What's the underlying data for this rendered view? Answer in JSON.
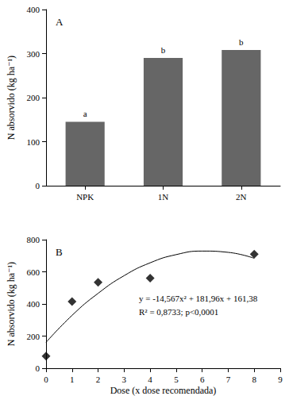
{
  "chart_data": [
    {
      "type": "bar",
      "title": "A",
      "categories": [
        "NPK",
        "1N",
        "2N"
      ],
      "values": [
        145,
        290,
        308
      ],
      "color": "#666666",
      "annotations": [
        {
          "category": "NPK",
          "text": "a"
        },
        {
          "category": "1N",
          "text": "b"
        },
        {
          "category": "2N",
          "text": "b"
        }
      ],
      "y_label": "N absorvido (kg ha⁻¹)",
      "ylim": [
        0,
        400
      ],
      "yticks": [
        0,
        100,
        200,
        300,
        400
      ],
      "grid": false
    },
    {
      "type": "scatter",
      "title": "B",
      "x_label": "Dose (x dose recomendada)",
      "y_label": "N absorvido (kg ha⁻¹)",
      "series": [
        {
          "type": "scatter",
          "marker": "diamond",
          "color": "#000000",
          "x": [
            0,
            1,
            2,
            4,
            8
          ],
          "values": [
            75,
            415,
            535,
            560,
            710
          ]
        },
        {
          "type": "line",
          "line_style": "solid",
          "color": "#000000",
          "x": [
            0,
            1,
            2,
            3,
            4,
            5,
            6,
            7,
            8
          ],
          "values": [
            161,
            329,
            466,
            576,
            656,
            707,
            729,
            721,
            684
          ]
        }
      ],
      "annotations": [
        "y = -14,567x² + 181,96x + 161,38",
        "R² = 0,8733; p<0,0001"
      ],
      "xlim": [
        0,
        9
      ],
      "xticks": [
        0,
        1,
        2,
        3,
        4,
        5,
        6,
        7,
        8,
        9
      ],
      "ylim": [
        0,
        800
      ],
      "yticks": [
        0,
        200,
        400,
        600,
        800
      ],
      "grid": false
    }
  ]
}
